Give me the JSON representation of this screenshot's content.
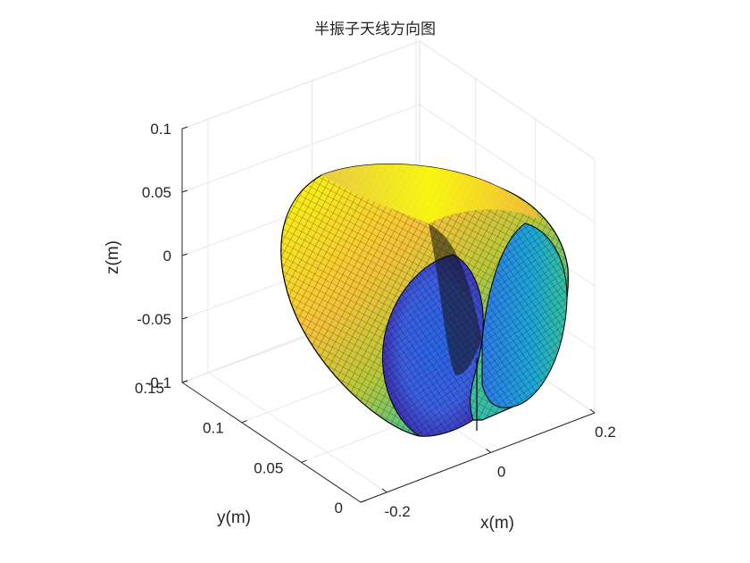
{
  "chart_data": {
    "type": "surface",
    "title": "半振子天线方向图",
    "xlabel": "x(m)",
    "ylabel": "y(m)",
    "zlabel": "z(m)",
    "xlim": [
      -0.25,
      0.2
    ],
    "ylim": [
      0,
      0.15
    ],
    "zlim": [
      -0.1,
      0.1
    ],
    "x_ticks": [
      "-0.2",
      "0",
      "0.2"
    ],
    "y_ticks": [
      "0",
      "0.05",
      "0.1",
      "0.15"
    ],
    "z_ticks": [
      "-0.1",
      "-0.05",
      "0",
      "0.05",
      "0.1"
    ],
    "grid": true,
    "colormap": [
      "#3e26a8",
      "#2f6ef0",
      "#1ea7d6",
      "#35c09a",
      "#a5c33a",
      "#f6b83c",
      "#f9fb0e"
    ],
    "surface_edge_color": "#000000"
  }
}
